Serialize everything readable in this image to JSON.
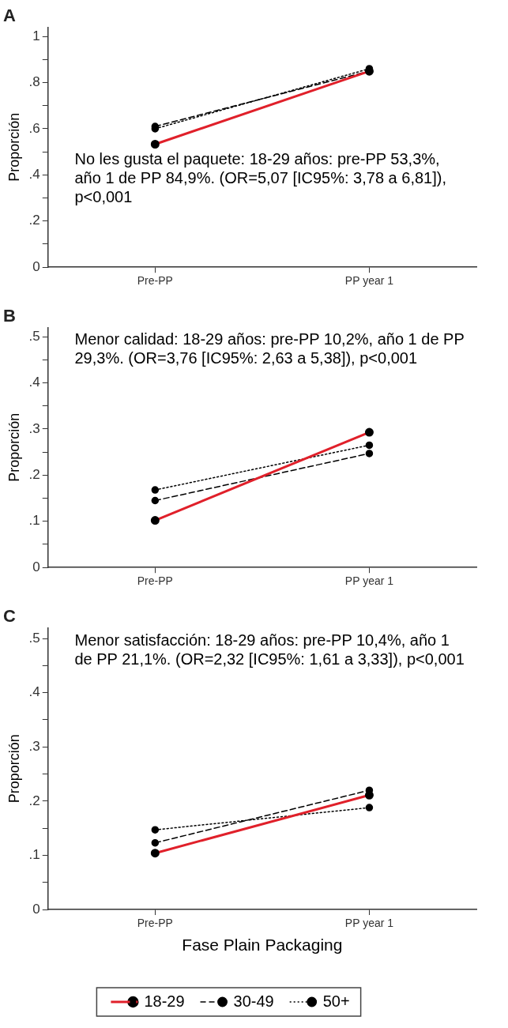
{
  "chart_data": [
    {
      "type": "line",
      "title": "A",
      "ylabel": "Proporción",
      "categories": [
        "Pre-PP",
        "PP year 1"
      ],
      "series": [
        {
          "color": "#e0202a",
          "values": [
            0.533,
            0.849
          ],
          "line_style": "solid"
        },
        {
          "color": "#000000",
          "values": [
            0.61,
            0.85
          ],
          "line_style": "dashed"
        },
        {
          "color": "#000000",
          "values": [
            0.6,
            0.86
          ],
          "line_style": "dotted"
        }
      ],
      "ylim": [
        0,
        1.04
      ],
      "yticks": [
        {
          "value": 0,
          "label": "0"
        },
        {
          "value": 0.1,
          "label": null
        },
        {
          "value": 0.2,
          "label": ".2"
        },
        {
          "value": 0.3,
          "label": null
        },
        {
          "value": 0.4,
          "label": ".4"
        },
        {
          "value": 0.5,
          "label": null
        },
        {
          "value": 0.6,
          "label": ".6"
        },
        {
          "value": 0.7,
          "label": null
        },
        {
          "value": 0.8,
          "label": ".8"
        },
        {
          "value": 0.9,
          "label": null
        },
        {
          "value": 1,
          "label": "1"
        }
      ],
      "annotations": [
        "No les gusta el paquete: 18-29 años: pre-PP 53,3%, año 1 de PP 84,9%. (OR=5,07 [IC95%: 3,78 a 6,81]), p<0,001"
      ],
      "grid": false,
      "legend": false,
      "marker": "circle"
    },
    {
      "type": "line",
      "title": "B",
      "ylabel": "Proporción",
      "categories": [
        "Pre-PP",
        "PP year 1"
      ],
      "series": [
        {
          "color": "#e0202a",
          "values": [
            0.102,
            0.293
          ],
          "line_style": "solid"
        },
        {
          "color": "#000000",
          "values": [
            0.145,
            0.247
          ],
          "line_style": "dashed"
        },
        {
          "color": "#000000",
          "values": [
            0.168,
            0.265
          ],
          "line_style": "dotted"
        }
      ],
      "ylim": [
        0,
        0.52
      ],
      "yticks": [
        {
          "value": 0,
          "label": "0"
        },
        {
          "value": 0.05,
          "label": null
        },
        {
          "value": 0.1,
          "label": ".1"
        },
        {
          "value": 0.15,
          "label": null
        },
        {
          "value": 0.2,
          "label": ".2"
        },
        {
          "value": 0.25,
          "label": null
        },
        {
          "value": 0.3,
          "label": ".3"
        },
        {
          "value": 0.35,
          "label": null
        },
        {
          "value": 0.4,
          "label": ".4"
        },
        {
          "value": 0.45,
          "label": null
        },
        {
          "value": 0.5,
          "label": ".5"
        }
      ],
      "annotations": [
        "Menor calidad: 18-29 años: pre-PP 10,2%, año 1 de PP 29,3%. (OR=3,76 [IC95%: 2,63 a 5,38]), p<0,001"
      ],
      "grid": false,
      "legend": false,
      "marker": "circle"
    },
    {
      "type": "line",
      "title": "C",
      "ylabel": "Proporción",
      "xlabel": "Fase Plain Packaging",
      "categories": [
        "Pre-PP",
        "PP year 1"
      ],
      "series": [
        {
          "name": "18-29",
          "color": "#e0202a",
          "values": [
            0.104,
            0.211
          ],
          "line_style": "solid"
        },
        {
          "name": "30-49",
          "color": "#000000",
          "values": [
            0.123,
            0.22
          ],
          "line_style": "dashed"
        },
        {
          "name": "50+",
          "color": "#000000",
          "values": [
            0.147,
            0.188
          ],
          "line_style": "dotted"
        }
      ],
      "ylim": [
        0,
        0.52
      ],
      "yticks": [
        {
          "value": 0,
          "label": "0"
        },
        {
          "value": 0.05,
          "label": null
        },
        {
          "value": 0.1,
          "label": ".1"
        },
        {
          "value": 0.15,
          "label": null
        },
        {
          "value": 0.2,
          "label": ".2"
        },
        {
          "value": 0.25,
          "label": null
        },
        {
          "value": 0.3,
          "label": ".3"
        },
        {
          "value": 0.35,
          "label": null
        },
        {
          "value": 0.4,
          "label": ".4"
        },
        {
          "value": 0.45,
          "label": null
        },
        {
          "value": 0.5,
          "label": ".5"
        }
      ],
      "annotations": [
        "Menor satisfacción: 18-29 años: pre-PP 10,4%, año 1 de PP 21,1%. (OR=2,32 [IC95%: 1,61 a 3,33]), p<0,001"
      ],
      "grid": false,
      "legend": "bottom",
      "marker": "circle"
    }
  ]
}
